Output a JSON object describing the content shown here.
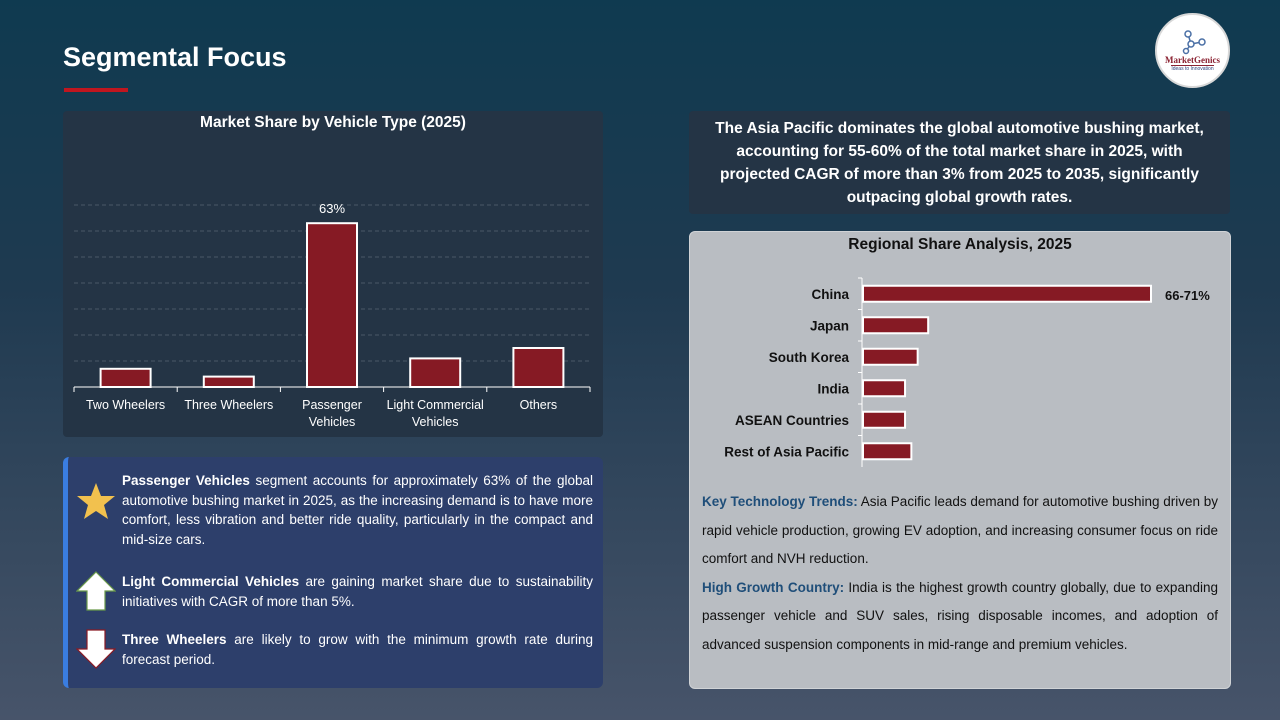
{
  "header": {
    "title": "Segmental Focus",
    "logo_text": "MarketGenics",
    "logo_tagline": "Ideas to Innovation"
  },
  "colors": {
    "bar": "#861a24",
    "accent": "#c0161f",
    "star": "#f2c14e"
  },
  "chart_data": [
    {
      "type": "bar",
      "title": "Market Share by Vehicle Type (2025)",
      "categories": [
        "Two Wheelers",
        "Three Wheelers",
        "Passenger Vehicles",
        "Light Commercial Vehicles",
        "Others"
      ],
      "values": [
        7,
        4,
        63,
        11,
        15
      ],
      "unit": "%",
      "data_labels": {
        "Passenger Vehicles": "63%"
      },
      "ylim": [
        0,
        70
      ],
      "grid": true
    },
    {
      "type": "bar",
      "orientation": "horizontal",
      "title": "Regional Share Analysis, 2025",
      "categories": [
        "China",
        "Japan",
        "South Korea",
        "India",
        "ASEAN Countries",
        "Rest of Asia Pacific"
      ],
      "values": [
        68.5,
        15.5,
        13,
        10,
        10,
        11.5
      ],
      "unit": "%",
      "data_labels": {
        "China": "66-71%"
      },
      "grid": false
    }
  ],
  "insights": [
    {
      "icon": "star-icon",
      "bold": "Passenger Vehicles",
      "text": " segment accounts for approximately 63% of the global automotive bushing market in 2025, as the increasing demand is to have more comfort, less vibration and better ride quality, particularly in the compact and mid-size cars."
    },
    {
      "icon": "arrow-up-icon",
      "bold": "Light Commercial Vehicles",
      "text": " are gaining market share due to sustainability initiatives with CAGR of more than 5%."
    },
    {
      "icon": "arrow-down-icon",
      "bold": "Three Wheelers",
      "text": " are likely to grow with the minimum growth rate during forecast period."
    }
  ],
  "headline": "The Asia Pacific dominates the global automotive bushing market, accounting for 55-60% of the total market share in 2025, with projected CAGR of more than 3% from 2025 to 2035, significantly outpacing global growth rates.",
  "notes": [
    {
      "label": "Key Technology Trends:",
      "text": " Asia Pacific leads demand for automotive bushing driven by rapid vehicle production, growing EV adoption, and increasing consumer focus on ride comfort and NVH reduction."
    },
    {
      "label": "High Growth Country:",
      "text": " India is the highest growth country globally, due to expanding passenger vehicle and SUV sales, rising disposable incomes, and adoption of advanced suspension components in mid-range and premium vehicles."
    }
  ]
}
